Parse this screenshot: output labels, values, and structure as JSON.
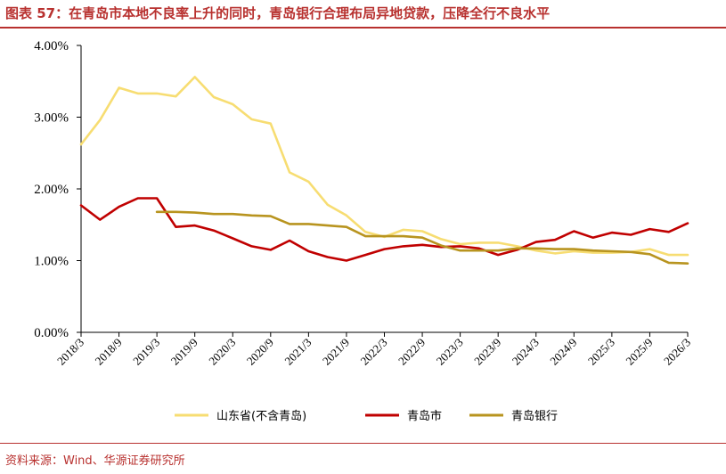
{
  "header": {
    "title": "图表 57：在青岛市本地不良率上升的同时，青岛银行合理布局异地贷款，压降全行不良水平"
  },
  "footer": {
    "source": "资料来源：Wind、华源证券研究所"
  },
  "colors": {
    "accent": "#b8312f",
    "series": [
      "#f7dd72",
      "#c00000",
      "#b8941f"
    ]
  },
  "chart_data": {
    "type": "line",
    "x_labels": [
      "2018/3",
      "2018/9",
      "2019/3",
      "2019/9",
      "2020/3",
      "2020/9",
      "2021/3",
      "2021/9",
      "2022/3",
      "2022/9",
      "2023/3",
      "2023/9",
      "2024/3",
      "2024/9",
      "2025/3",
      "2025/9",
      "2026/3"
    ],
    "y_ticks": [
      "0.00%",
      "1.00%",
      "2.00%",
      "3.00%",
      "4.00%"
    ],
    "ylim": [
      0,
      4
    ],
    "grid": false,
    "legend_position": "bottom",
    "series": [
      {
        "name": "山东省(不含青岛)",
        "color": "#f7dd72",
        "x": [
          0,
          0.5,
          1,
          1.5,
          2,
          2.5,
          3,
          3.5,
          4,
          4.5,
          5,
          5.5,
          6,
          6.5,
          7,
          7.5,
          8,
          8.5,
          9,
          9.5,
          10,
          10.5,
          11,
          11.5,
          12,
          12.5,
          13,
          13.5,
          14,
          14.5,
          15,
          15.5,
          16
        ],
        "y": [
          2.62,
          2.96,
          3.41,
          3.33,
          3.33,
          3.29,
          3.56,
          3.28,
          3.18,
          2.97,
          2.91,
          2.23,
          2.1,
          1.78,
          1.63,
          1.4,
          1.33,
          1.43,
          1.41,
          1.3,
          1.23,
          1.25,
          1.25,
          1.2,
          1.14,
          1.1,
          1.13,
          1.11,
          1.11,
          1.12,
          1.16,
          1.08,
          1.08
        ]
      },
      {
        "name": "青岛市",
        "color": "#c00000",
        "x": [
          0,
          0.5,
          1,
          1.5,
          2,
          2.5,
          3,
          3.5,
          4,
          4.5,
          5,
          5.5,
          6,
          6.5,
          7,
          7.5,
          8,
          8.5,
          9,
          9.5,
          10,
          10.5,
          11,
          11.5,
          12,
          12.5,
          13,
          13.5,
          14,
          14.5,
          15,
          15.5,
          16
        ],
        "y": [
          1.77,
          1.57,
          1.75,
          1.87,
          1.87,
          1.47,
          1.49,
          1.42,
          1.31,
          1.2,
          1.15,
          1.28,
          1.13,
          1.05,
          1.0,
          1.08,
          1.16,
          1.2,
          1.22,
          1.19,
          1.2,
          1.17,
          1.08,
          1.15,
          1.26,
          1.29,
          1.41,
          1.32,
          1.39,
          1.36,
          1.44,
          1.4,
          1.52
        ]
      },
      {
        "name": "青岛银行",
        "color": "#b8941f",
        "x": [
          2,
          2.5,
          3,
          3.5,
          4,
          4.5,
          5,
          5.5,
          6,
          6.5,
          7,
          7.5,
          8,
          8.5,
          9,
          9.5,
          10,
          10.5,
          11,
          11.5,
          12,
          12.5,
          13,
          13.5,
          14,
          14.5,
          15,
          15.5,
          16
        ],
        "y": [
          1.68,
          1.68,
          1.67,
          1.65,
          1.65,
          1.63,
          1.62,
          1.51,
          1.51,
          1.49,
          1.47,
          1.34,
          1.34,
          1.34,
          1.32,
          1.21,
          1.14,
          1.14,
          1.14,
          1.17,
          1.17,
          1.16,
          1.16,
          1.14,
          1.13,
          1.12,
          1.09,
          0.97,
          0.96
        ]
      }
    ]
  }
}
